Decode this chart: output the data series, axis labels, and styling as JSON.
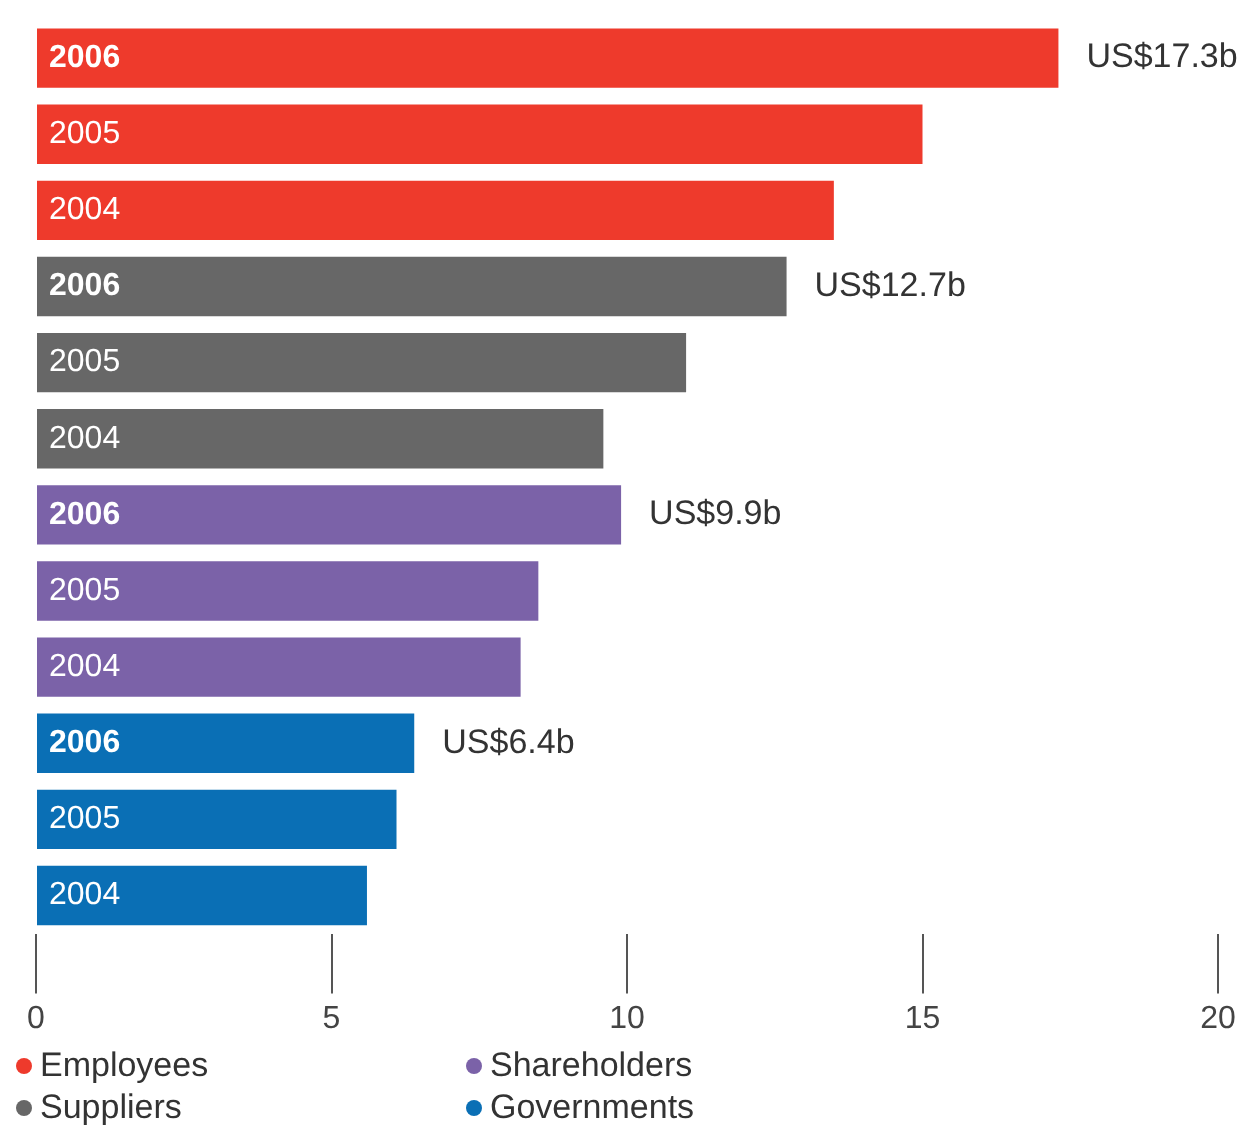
{
  "chart_data": {
    "type": "bar",
    "orientation": "horizontal",
    "categories": [
      "2006",
      "2005",
      "2004",
      "2006",
      "2005",
      "2004",
      "2006",
      "2005",
      "2004",
      "2006",
      "2005",
      "2004"
    ],
    "series": [
      {
        "name": "Employees",
        "color": "#ee3a2c",
        "values": [
          17.3,
          15.0,
          13.5,
          null,
          null,
          null,
          null,
          null,
          null,
          null,
          null,
          null
        ],
        "value_labels": [
          "US$17.3b",
          null,
          null,
          null,
          null,
          null,
          null,
          null,
          null,
          null,
          null,
          null
        ]
      },
      {
        "name": "Suppliers",
        "color": "#676767",
        "values": [
          null,
          null,
          null,
          12.7,
          11.0,
          9.6,
          null,
          null,
          null,
          null,
          null,
          null
        ],
        "value_labels": [
          null,
          null,
          null,
          "US$12.7b",
          null,
          null,
          null,
          null,
          null,
          null,
          null,
          null
        ]
      },
      {
        "name": "Shareholders",
        "color": "#7b62a8",
        "values": [
          null,
          null,
          null,
          null,
          null,
          null,
          9.9,
          8.5,
          8.2,
          null,
          null,
          null
        ],
        "value_labels": [
          null,
          null,
          null,
          null,
          null,
          null,
          "US$9.9b",
          null,
          null,
          null,
          null,
          null
        ]
      },
      {
        "name": "Governments",
        "color": "#0a6fb5",
        "values": [
          null,
          null,
          null,
          null,
          null,
          null,
          null,
          null,
          null,
          6.4,
          6.1,
          5.6
        ],
        "value_labels": [
          null,
          null,
          null,
          null,
          null,
          null,
          null,
          null,
          null,
          "US$6.4b",
          null,
          null
        ]
      }
    ],
    "xlim": [
      0,
      20
    ],
    "xticks": [
      0,
      5,
      10,
      15,
      20
    ],
    "grid": false,
    "legend": "bottom left"
  }
}
